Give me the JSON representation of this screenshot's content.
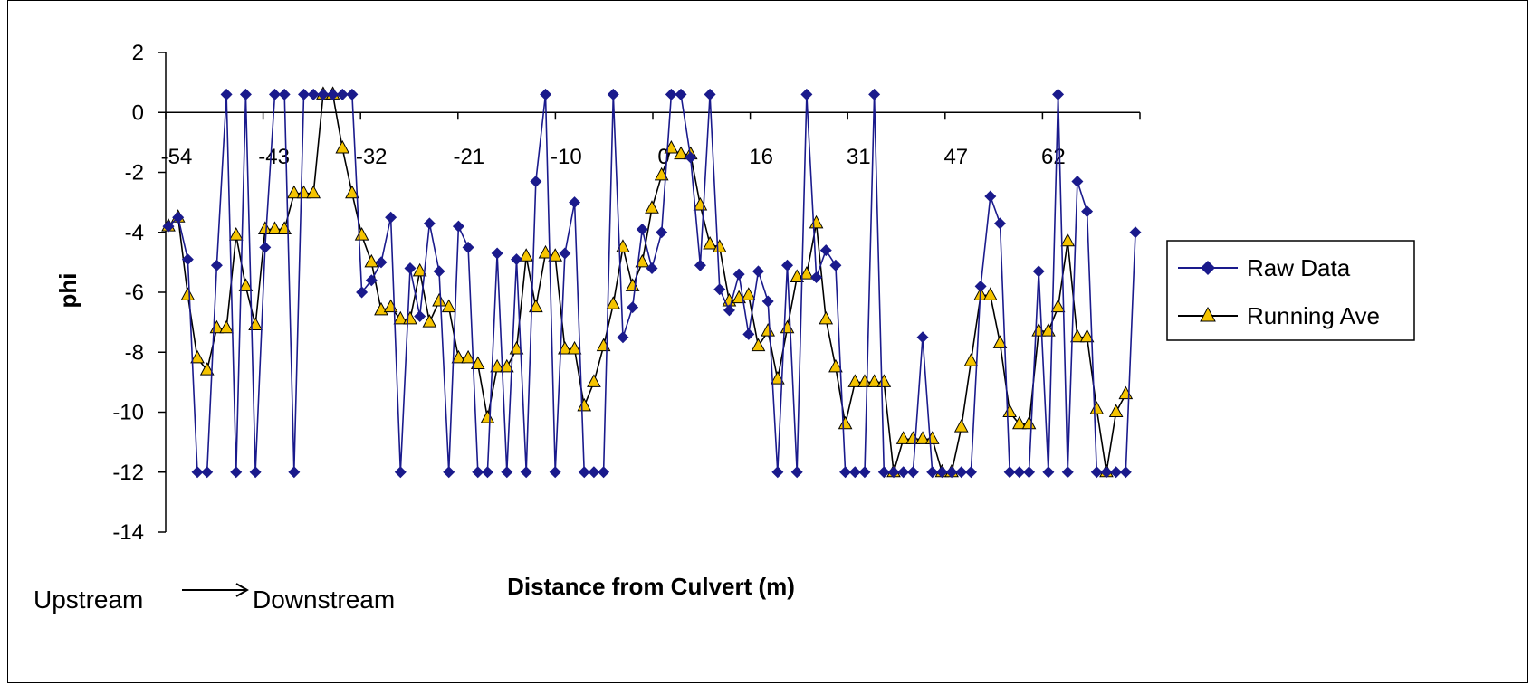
{
  "chart_data": {
    "type": "line",
    "title": "",
    "xlabel": "Distance from Culvert (m)",
    "ylabel": "phi",
    "ylim": [
      -14,
      2
    ],
    "yticks": [
      2,
      0,
      -2,
      -4,
      -6,
      -8,
      -10,
      -12,
      -14
    ],
    "xtick_labels": [
      "-54",
      "-43",
      "-32",
      "-21",
      "-10",
      "0",
      "16",
      "31",
      "47",
      "62"
    ],
    "grid": false,
    "legend_position": "right",
    "colors": {
      "raw": "#1a1a8c",
      "running": "#f5c400",
      "running_line": "#000000"
    },
    "series": [
      {
        "name": "Raw Data",
        "marker": "diamond",
        "values": [
          -3.8,
          -3.5,
          -4.9,
          -12,
          -12,
          -5.1,
          0.6,
          -12,
          0.6,
          -12,
          -4.5,
          0.6,
          0.6,
          -12,
          0.6,
          0.6,
          0.6,
          0.6,
          0.6,
          0.6,
          -6,
          -5.6,
          -5,
          -3.5,
          -12,
          -5.2,
          -6.8,
          -3.7,
          -5.3,
          -12,
          -3.8,
          -4.5,
          -12,
          -12,
          -4.7,
          -12,
          -4.9,
          -12,
          -2.3,
          0.6,
          -12,
          -4.7,
          -3,
          -12,
          -12,
          -12,
          0.6,
          -7.5,
          -6.5,
          -3.9,
          -5.2,
          -4,
          0.6,
          0.6,
          -1.5,
          -5.1,
          0.6,
          -5.9,
          -6.6,
          -5.4,
          -7.4,
          -5.3,
          -6.3,
          -12,
          -5.1,
          -12,
          0.6,
          -5.5,
          -4.6,
          -5.1,
          -12,
          -12,
          -12,
          0.6,
          -12,
          -12,
          -12,
          -12,
          -7.5,
          -12,
          -12,
          -12,
          -12,
          -12,
          -5.8,
          -2.8,
          -3.7,
          -12,
          -12,
          -12,
          -5.3,
          -12,
          0.6,
          -12,
          -2.3,
          -3.3,
          -12,
          -12,
          -12,
          -12,
          -4
        ]
      },
      {
        "name": "Running Ave",
        "marker": "triangle",
        "values": [
          -3.8,
          -3.5,
          -6.1,
          -8.2,
          -8.6,
          -7.2,
          -7.2,
          -4.1,
          -5.8,
          -7.1,
          -3.9,
          -3.9,
          -3.9,
          -2.7,
          -2.7,
          -2.7,
          0.6,
          0.6,
          -1.2,
          -2.7,
          -4.1,
          -5,
          -6.6,
          -6.5,
          -6.9,
          -6.9,
          -5.3,
          -7,
          -6.3,
          -6.5,
          -8.2,
          -8.2,
          -8.4,
          -10.2,
          -8.5,
          -8.5,
          -7.9,
          -4.8,
          -6.5,
          -4.7,
          -4.8,
          -7.9,
          -7.9,
          -9.8,
          -9,
          -7.8,
          -6.4,
          -4.5,
          -5.8,
          -5,
          -3.2,
          -2.1,
          -1.2,
          -1.4,
          -1.4,
          -3.1,
          -4.4,
          -4.5,
          -6.3,
          -6.2,
          -6.1,
          -7.8,
          -7.3,
          -8.9,
          -7.2,
          -5.5,
          -5.4,
          -3.7,
          -6.9,
          -8.5,
          -10.4,
          -9,
          -9,
          -9,
          -9,
          -12,
          -10.9,
          -10.9,
          -10.9,
          -10.9,
          -12,
          -12,
          -10.5,
          -8.3,
          -6.1,
          -6.1,
          -7.7,
          -10,
          -10.4,
          -10.4,
          -7.3,
          -7.3,
          -6.5,
          -4.3,
          -7.5,
          -7.5,
          -9.9,
          -12,
          -10,
          -9.4
        ]
      }
    ]
  },
  "annotation": {
    "upstream": "Upstream",
    "downstream": "Downstream"
  }
}
